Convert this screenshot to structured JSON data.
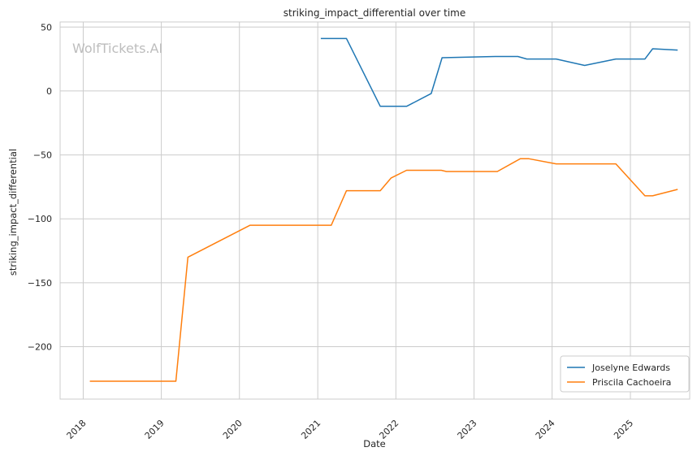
{
  "chart_data": {
    "type": "line",
    "title": "striking_impact_differential over time",
    "xlabel": "Date",
    "ylabel": "striking_impact_differential",
    "watermark": "WolfTickets.AI",
    "x_ticks": [
      "2018",
      "2019",
      "2020",
      "2021",
      "2022",
      "2023",
      "2024",
      "2025"
    ],
    "y_ticks": [
      50,
      0,
      -50,
      -100,
      -150,
      -200
    ],
    "xlim": [
      "2017-09-15",
      "2025-10-05"
    ],
    "ylim": [
      -241,
      54
    ],
    "grid": true,
    "legend_position": "lower right",
    "series": [
      {
        "name": "Joselyne Edwards",
        "color": "#1f77b4",
        "points": [
          [
            "2021-01-15",
            41
          ],
          [
            "2021-05-15",
            41
          ],
          [
            "2021-10-20",
            -12
          ],
          [
            "2022-02-20",
            -12
          ],
          [
            "2022-06-15",
            -2
          ],
          [
            "2022-08-05",
            26
          ],
          [
            "2023-04-10",
            27
          ],
          [
            "2023-07-25",
            27
          ],
          [
            "2023-09-05",
            25
          ],
          [
            "2024-01-20",
            25
          ],
          [
            "2024-06-01",
            20
          ],
          [
            "2024-10-25",
            25
          ],
          [
            "2025-03-10",
            25
          ],
          [
            "2025-04-15",
            33
          ],
          [
            "2025-08-10",
            32
          ]
        ]
      },
      {
        "name": "Priscila Cachoeira",
        "color": "#ff7f0e",
        "points": [
          [
            "2018-02-01",
            -227
          ],
          [
            "2019-03-10",
            -227
          ],
          [
            "2019-05-05",
            -130
          ],
          [
            "2020-02-20",
            -105
          ],
          [
            "2021-01-10",
            -105
          ],
          [
            "2021-03-05",
            -105
          ],
          [
            "2021-05-15",
            -78
          ],
          [
            "2021-10-20",
            -78
          ],
          [
            "2021-12-10",
            -68
          ],
          [
            "2022-02-20",
            -62
          ],
          [
            "2022-08-01",
            -62
          ],
          [
            "2022-08-25",
            -63
          ],
          [
            "2023-04-20",
            -63
          ],
          [
            "2023-08-05",
            -53
          ],
          [
            "2023-09-15",
            -53
          ],
          [
            "2024-01-20",
            -57
          ],
          [
            "2024-10-25",
            -57
          ],
          [
            "2025-03-10",
            -82
          ],
          [
            "2025-04-15",
            -82
          ],
          [
            "2025-08-10",
            -77
          ]
        ]
      }
    ]
  }
}
